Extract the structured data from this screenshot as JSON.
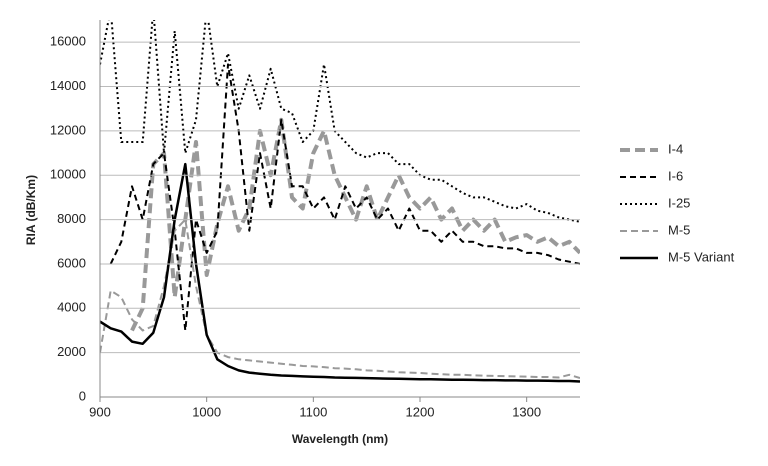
{
  "chart_data": {
    "type": "line",
    "y_label": "RIA (dB/Km)",
    "x_label": "Wavelength (nm)",
    "x": [
      900,
      910,
      920,
      930,
      940,
      950,
      960,
      970,
      980,
      990,
      1000,
      1010,
      1020,
      1030,
      1040,
      1050,
      1060,
      1070,
      1080,
      1090,
      1100,
      1110,
      1120,
      1130,
      1140,
      1150,
      1160,
      1170,
      1180,
      1190,
      1200,
      1210,
      1220,
      1230,
      1240,
      1250,
      1260,
      1270,
      1280,
      1290,
      1300,
      1310,
      1320,
      1330,
      1340,
      1350
    ],
    "xlim": [
      900,
      1350
    ],
    "xticks": [
      900,
      1000,
      1100,
      1200,
      1300
    ],
    "ylim": [
      0,
      17000
    ],
    "yticks": [
      0,
      2000,
      4000,
      6000,
      8000,
      10000,
      12000,
      14000,
      16000
    ],
    "grid": true,
    "legend": "right",
    "series": [
      {
        "name": "I-4",
        "color": "#999999",
        "dash": "10 5",
        "width": 4,
        "values": [
          null,
          null,
          null,
          3000,
          4000,
          10500,
          11000,
          4500,
          8000,
          11500,
          5500,
          7800,
          9500,
          7500,
          8500,
          12000,
          10000,
          12500,
          9000,
          8500,
          11000,
          12000,
          10000,
          9000,
          8000,
          9500,
          8000,
          9000,
          10000,
          9000,
          8500,
          9000,
          8000,
          8500,
          7500,
          8000,
          7500,
          8000,
          7000,
          7200,
          7300,
          7000,
          7200,
          6800,
          7000,
          6500
        ]
      },
      {
        "name": "I-6",
        "color": "#000000",
        "dash": "6 4",
        "width": 2,
        "values": [
          null,
          6000,
          7000,
          9500,
          8000,
          10500,
          11000,
          7500,
          3000,
          8000,
          6500,
          7500,
          15000,
          12000,
          7500,
          11000,
          8500,
          12500,
          9500,
          9500,
          8500,
          9000,
          8000,
          9500,
          8500,
          9000,
          8000,
          8500,
          7500,
          8500,
          7500,
          7500,
          7000,
          7500,
          7000,
          7000,
          6800,
          6800,
          6700,
          6700,
          6500,
          6500,
          6400,
          6200,
          6100,
          6000
        ]
      },
      {
        "name": "I-25",
        "color": "#000000",
        "dash": "2 3",
        "width": 2,
        "values": [
          15000,
          17500,
          11500,
          11500,
          11500,
          17500,
          11000,
          16500,
          11000,
          12500,
          17500,
          14000,
          15500,
          13000,
          14500,
          13000,
          14800,
          13000,
          12800,
          11500,
          12000,
          15000,
          12000,
          11500,
          11000,
          10800,
          11000,
          11000,
          10500,
          10500,
          10000,
          9800,
          9800,
          9500,
          9200,
          9000,
          9000,
          8800,
          8600,
          8500,
          8700,
          8400,
          8300,
          8100,
          8000,
          7900
        ]
      },
      {
        "name": "M-5",
        "color": "#999999",
        "dash": "7 4",
        "width": 2,
        "values": [
          2000,
          4800,
          4500,
          3500,
          3000,
          3200,
          5000,
          7500,
          8000,
          5000,
          2800,
          2000,
          1800,
          1700,
          1650,
          1600,
          1550,
          1500,
          1450,
          1400,
          1380,
          1350,
          1300,
          1280,
          1250,
          1200,
          1180,
          1150,
          1120,
          1100,
          1080,
          1050,
          1030,
          1000,
          1000,
          980,
          960,
          950,
          940,
          930,
          920,
          900,
          900,
          880,
          1000,
          850
        ]
      },
      {
        "name": "M-5 Variant",
        "color": "#000000",
        "dash": "none",
        "width": 2.5,
        "values": [
          3400,
          3100,
          2950,
          2500,
          2400,
          2900,
          4500,
          8000,
          10500,
          6000,
          2800,
          1700,
          1400,
          1200,
          1100,
          1050,
          1000,
          970,
          950,
          930,
          910,
          900,
          880,
          870,
          860,
          850,
          840,
          830,
          820,
          810,
          800,
          800,
          790,
          780,
          780,
          770,
          760,
          760,
          750,
          750,
          740,
          740,
          730,
          720,
          720,
          700
        ]
      }
    ]
  }
}
